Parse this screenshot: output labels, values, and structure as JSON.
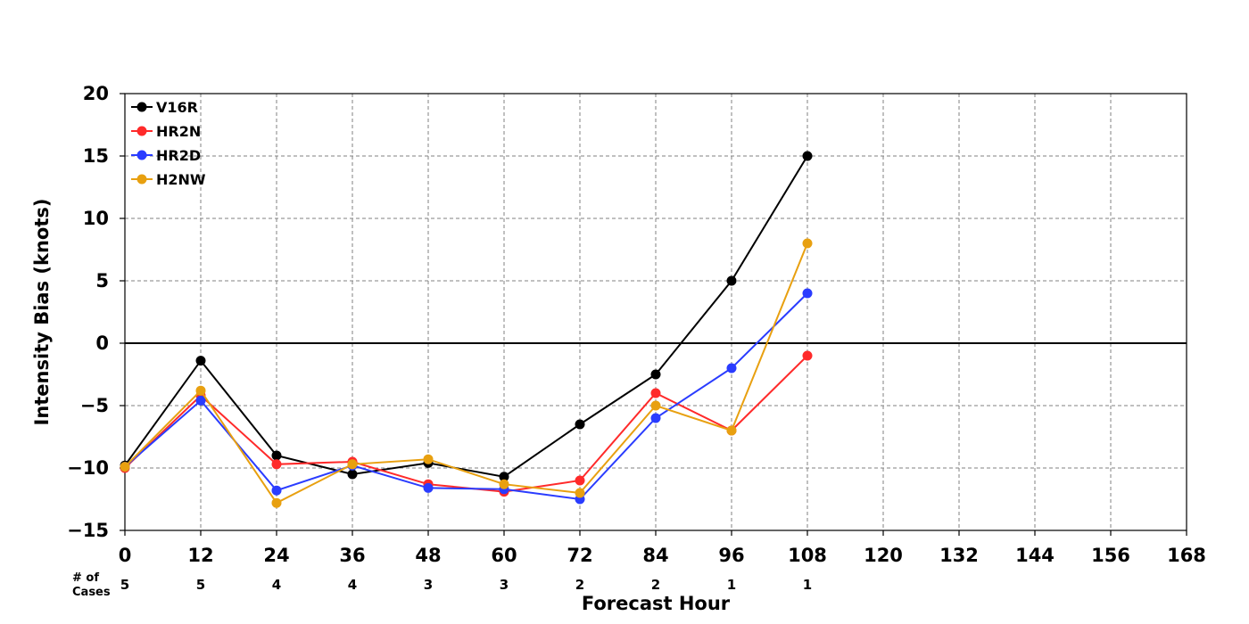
{
  "chart_data": {
    "type": "line",
    "title": "",
    "xlabel": "Forecast Hour",
    "ylabel": "Intensity Bias (knots)",
    "xlim": [
      0,
      168
    ],
    "ylim": [
      -15,
      20
    ],
    "x_ticks": [
      0,
      12,
      24,
      36,
      48,
      60,
      72,
      84,
      96,
      108,
      120,
      132,
      144,
      156,
      168
    ],
    "y_ticks": [
      -15,
      -10,
      -5,
      0,
      5,
      10,
      15,
      20
    ],
    "x_tick_labels": [
      "0",
      "12",
      "24",
      "36",
      "48",
      "60",
      "72",
      "84",
      "96",
      "108",
      "120",
      "132",
      "144",
      "156",
      "168"
    ],
    "y_tick_labels": [
      "−15",
      "−10",
      "−5",
      "0",
      "5",
      "10",
      "15",
      "20"
    ],
    "grid": true,
    "legend_position": "top-left",
    "cases_label": [
      "# of",
      "Cases"
    ],
    "cases": [
      {
        "x": 0,
        "label": "5"
      },
      {
        "x": 12,
        "label": "5"
      },
      {
        "x": 24,
        "label": "4"
      },
      {
        "x": 36,
        "label": "4"
      },
      {
        "x": 48,
        "label": "3"
      },
      {
        "x": 60,
        "label": "3"
      },
      {
        "x": 72,
        "label": "2"
      },
      {
        "x": 84,
        "label": "2"
      },
      {
        "x": 96,
        "label": "1"
      },
      {
        "x": 108,
        "label": "1"
      }
    ],
    "x": [
      0,
      12,
      24,
      36,
      48,
      60,
      72,
      84,
      96,
      108
    ],
    "series": [
      {
        "name": "V16R",
        "color": "#000000",
        "values": [
          -9.8,
          -1.4,
          -9.0,
          -10.5,
          -9.6,
          -10.7,
          -6.5,
          -2.5,
          5.0,
          15.0
        ]
      },
      {
        "name": "HR2N",
        "color": "#ff2a2a",
        "values": [
          -10.0,
          -4.2,
          -9.7,
          -9.5,
          -11.3,
          -11.9,
          -11.0,
          -4.0,
          -7.0,
          -1.0
        ]
      },
      {
        "name": "HR2D",
        "color": "#2a3cff",
        "values": [
          -9.9,
          -4.6,
          -11.8,
          -9.8,
          -11.6,
          -11.7,
          -12.5,
          -6.0,
          -2.0,
          4.0
        ]
      },
      {
        "name": "H2NW",
        "color": "#e8a010",
        "values": [
          -9.9,
          -3.8,
          -12.8,
          -9.7,
          -9.3,
          -11.3,
          -12.0,
          -5.0,
          -7.0,
          8.0
        ]
      }
    ]
  }
}
